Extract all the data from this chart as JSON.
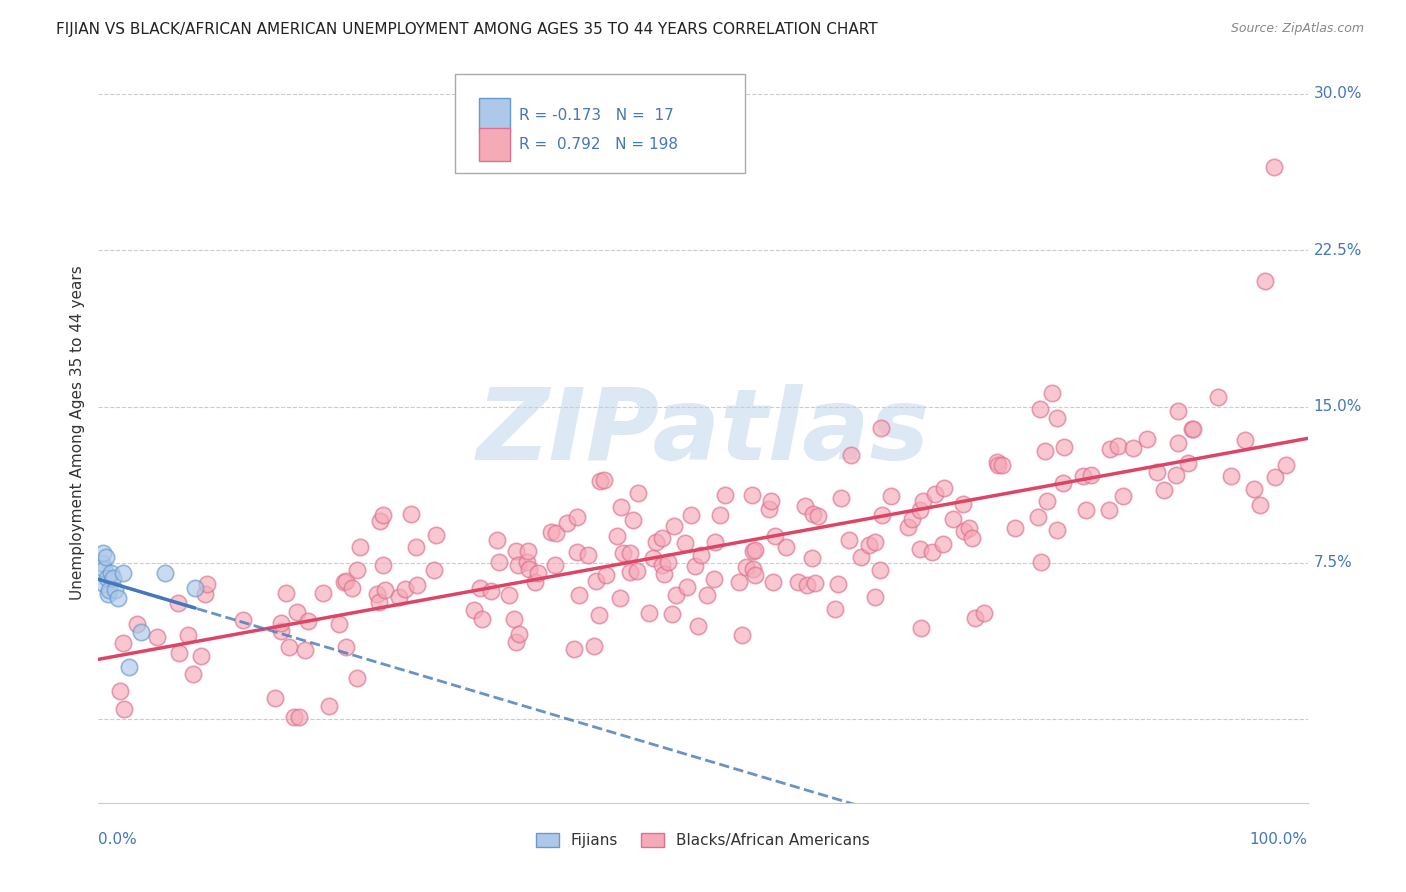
{
  "title": "FIJIAN VS BLACK/AFRICAN AMERICAN UNEMPLOYMENT AMONG AGES 35 TO 44 YEARS CORRELATION CHART",
  "source": "Source: ZipAtlas.com",
  "ylabel": "Unemployment Among Ages 35 to 44 years",
  "ytick_values": [
    0.0,
    0.075,
    0.15,
    0.225,
    0.3
  ],
  "ytick_labels": [
    "",
    "7.5%",
    "15.0%",
    "22.5%",
    "30.0%"
  ],
  "xlim": [
    0.0,
    1.0
  ],
  "ylim": [
    -0.04,
    0.315
  ],
  "fijian_R": -0.173,
  "fijian_N": 17,
  "black_R": 0.792,
  "black_N": 198,
  "fijian_color": "#adc8e8",
  "fijian_edge_color": "#6699cc",
  "black_color": "#f5aab8",
  "black_edge_color": "#dd7090",
  "fijian_line_color": "#4477bb",
  "black_line_color": "#dd4466",
  "background_color": "#ffffff",
  "grid_color": "#cccccc",
  "watermark_text": "ZIPatlas",
  "watermark_color": "#dde8f5",
  "legend_label_fijian": "Fijians",
  "legend_label_black": "Blacks/African Americans",
  "title_fontsize": 11,
  "axis_label_fontsize": 11,
  "tick_fontsize": 11,
  "legend_fontsize": 11,
  "tick_color": "#4477bb",
  "fijian_trend_intercept": 0.072,
  "fijian_trend_slope": -0.09,
  "black_trend_intercept": 0.028,
  "black_trend_slope": 0.105
}
